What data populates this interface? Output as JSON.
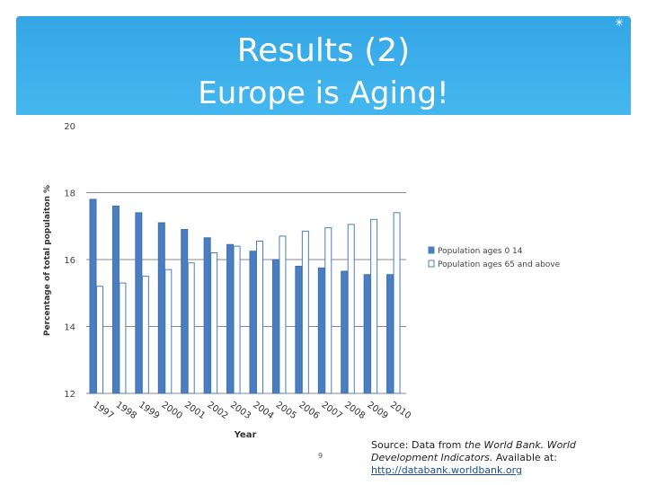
{
  "slide": {
    "title_line1": "Results (2)",
    "title_line2": "Europe is Aging!",
    "page_number": "9",
    "source_prefix": "Source: Data from ",
    "source_org": "the World Bank.",
    "source_space": " ",
    "source_title": "World Development Indicators.",
    "source_available": " Available at: ",
    "source_url": "http://databank.worldbank.org",
    "accent_color": "#3aaeea"
  },
  "chart_data": {
    "type": "bar",
    "xlabel": "Year",
    "ylabel": "Percentage of total populaiton %",
    "ylim": [
      12,
      20
    ],
    "yticks": [
      12,
      14,
      16,
      18,
      20
    ],
    "grid": true,
    "legend_position": "right",
    "categories": [
      "1997",
      "1998",
      "1999",
      "2000",
      "2001",
      "2002",
      "2003",
      "2004",
      "2005",
      "2006",
      "2007",
      "2008",
      "2009",
      "2010"
    ],
    "series": [
      {
        "name": "Population ages 0 14",
        "color": "#4a7ec1",
        "values": [
          17.8,
          17.6,
          17.4,
          17.1,
          16.9,
          16.65,
          16.45,
          16.25,
          16.0,
          15.8,
          15.75,
          15.65,
          15.55,
          15.55
        ]
      },
      {
        "name": "Population ages 65 and above",
        "color": "#ffffff",
        "values": [
          15.2,
          15.3,
          15.5,
          15.7,
          15.9,
          16.2,
          16.4,
          16.55,
          16.7,
          16.85,
          16.95,
          17.05,
          17.2,
          17.4
        ]
      }
    ]
  }
}
